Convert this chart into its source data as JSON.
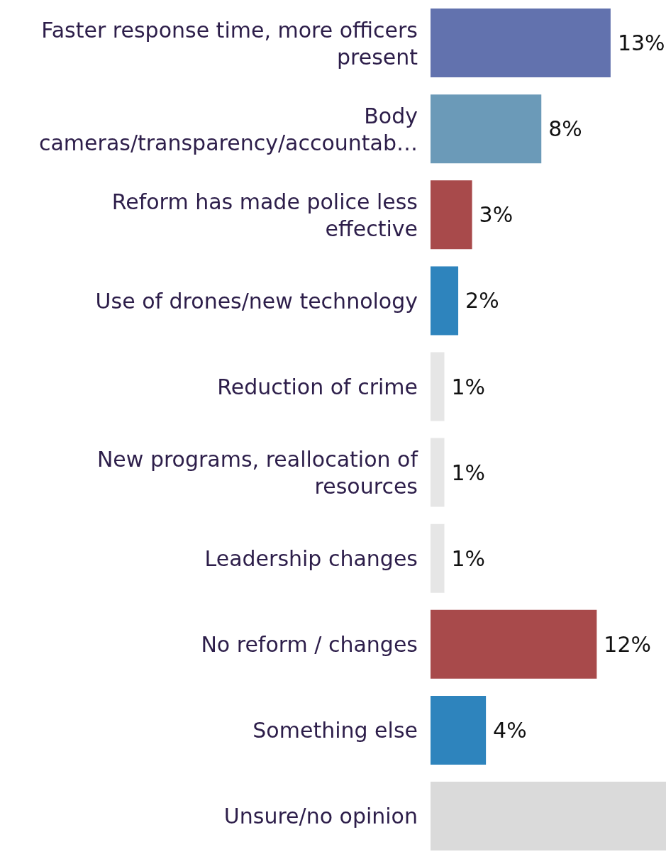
{
  "chart_data": {
    "type": "bar",
    "orientation": "horizontal",
    "categories": [
      "Faster response time, more officers present",
      "Body cameras/transparency/accountab…",
      "Reform has made police less effective",
      "Use of drones/new technology",
      "Reduction of crime",
      "New programs, reallocation of resources",
      "Leadership changes",
      "No reform / changes",
      "Something else",
      "Unsure/no opinion"
    ],
    "values": [
      13,
      8,
      3,
      2,
      1,
      1,
      1,
      12,
      4,
      17
    ],
    "colors": [
      "#6272ae",
      "#6b9ab8",
      "#a84a4b",
      "#2e84bd",
      "#e6e6e6",
      "#e6e6e6",
      "#e6e6e6",
      "#a84a4b",
      "#2e84bd",
      "#dadada"
    ],
    "value_labels": [
      "13%",
      "8%",
      "3%",
      "2%",
      "1%",
      "1%",
      "1%",
      "12%",
      "4%",
      null
    ]
  }
}
